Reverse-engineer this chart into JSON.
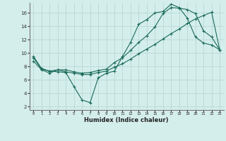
{
  "xlabel": "Humidex (Indice chaleur)",
  "bg_color": "#d4eeeb",
  "grid_color": "#b8d8d4",
  "line_color": "#1a6b5a",
  "x_ticks": [
    0,
    1,
    2,
    3,
    4,
    5,
    6,
    7,
    8,
    9,
    10,
    11,
    12,
    13,
    14,
    15,
    16,
    17,
    18,
    19,
    20,
    21,
    22,
    23
  ],
  "y_ticks": [
    2,
    4,
    6,
    8,
    10,
    12,
    14,
    16
  ],
  "xlim": [
    -0.5,
    23.5
  ],
  "ylim": [
    1.5,
    17.5
  ],
  "series1_y": [
    9.5,
    7.7,
    7.3,
    7.2,
    7.1,
    5.0,
    3.0,
    2.6,
    6.3,
    7.0,
    7.3,
    9.5,
    11.6,
    14.3,
    15.0,
    16.0,
    16.2,
    17.3,
    16.8,
    15.2,
    12.4,
    11.5,
    11.2,
    10.5
  ],
  "series2_y": [
    8.8,
    7.5,
    7.0,
    7.5,
    7.2,
    7.0,
    6.8,
    6.8,
    7.1,
    7.3,
    7.9,
    8.4,
    9.1,
    9.9,
    10.6,
    11.3,
    12.1,
    12.9,
    13.6,
    14.4,
    15.1,
    15.6,
    16.1,
    10.5
  ],
  "series3_y": [
    9.3,
    7.6,
    7.3,
    7.5,
    7.5,
    7.2,
    7.0,
    7.1,
    7.4,
    7.6,
    8.6,
    9.3,
    10.4,
    11.6,
    12.6,
    13.9,
    15.9,
    16.8,
    16.7,
    16.5,
    15.9,
    13.3,
    12.4,
    10.5
  ]
}
